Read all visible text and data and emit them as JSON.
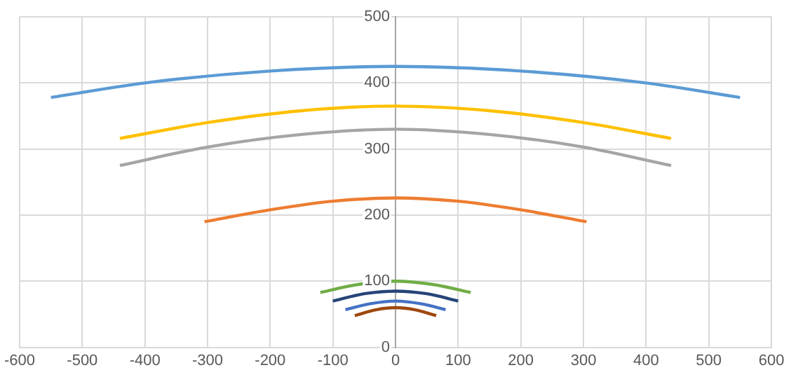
{
  "chart_data": {
    "type": "line",
    "xlim": [
      -600,
      600
    ],
    "xticks": [
      -600,
      -500,
      -400,
      -300,
      -200,
      -100,
      0,
      100,
      200,
      300,
      400,
      500,
      600
    ],
    "ylim": [
      0,
      500
    ],
    "yticks": [
      0,
      100,
      200,
      300,
      400,
      500
    ],
    "grid": true,
    "legend": false,
    "marker": "none",
    "line_style": "solid",
    "series": [
      {
        "color": "#5b9bd5",
        "x": [
          -550,
          -400,
          -200,
          0,
          200,
          400,
          550
        ],
        "values": [
          378,
          400,
          418,
          425,
          418,
          400,
          378
        ]
      },
      {
        "color": "#ffc000",
        "x": [
          -440,
          -300,
          -150,
          0,
          150,
          300,
          440
        ],
        "values": [
          316,
          340,
          358,
          365,
          358,
          340,
          316
        ]
      },
      {
        "color": "#a5a5a5",
        "x": [
          -440,
          -300,
          -150,
          0,
          150,
          300,
          440
        ],
        "values": [
          275,
          303,
          322,
          330,
          322,
          303,
          275
        ]
      },
      {
        "color": "#ed7d31",
        "x": [
          -305,
          -200,
          -100,
          0,
          100,
          200,
          305
        ],
        "values": [
          190,
          208,
          221,
          226,
          221,
          208,
          190
        ]
      },
      {
        "color": "#70ad47",
        "x": [
          -120,
          -60,
          0,
          60,
          120
        ],
        "values": [
          83,
          95,
          100,
          95,
          83
        ]
      },
      {
        "color": "#264478",
        "x": [
          -100,
          -50,
          0,
          50,
          100
        ],
        "values": [
          70,
          81,
          85,
          81,
          70
        ]
      },
      {
        "color": "#4472c4",
        "x": [
          -80,
          -40,
          0,
          40,
          80
        ],
        "values": [
          57,
          66,
          70,
          66,
          57
        ]
      },
      {
        "color": "#9e480e",
        "x": [
          -65,
          -30,
          0,
          30,
          65
        ],
        "values": [
          48,
          57,
          60,
          57,
          48
        ]
      }
    ]
  }
}
